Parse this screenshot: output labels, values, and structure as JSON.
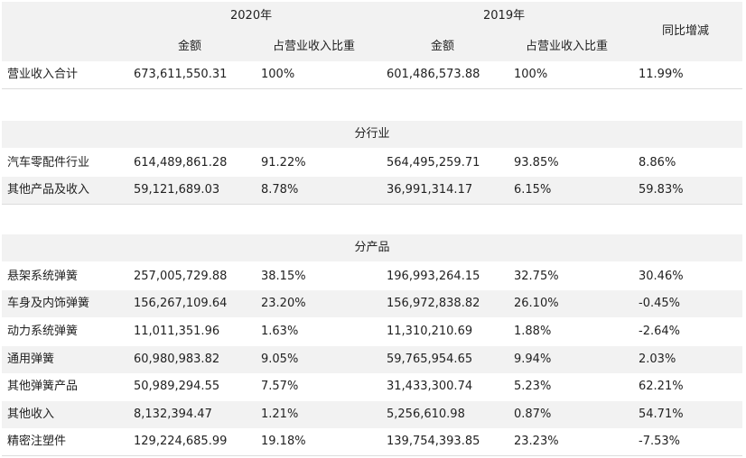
{
  "header": {
    "year_2020": "2020年",
    "year_2019": "2019年",
    "amount_2020": "金额",
    "ratio_2020": "占营业收入比重",
    "amount_2019": "金额",
    "ratio_2019": "占营业收入比重",
    "yoy": "同比增减"
  },
  "total": {
    "label": "营业收入合计",
    "amount_2020": "673,611,550.31",
    "ratio_2020": "100%",
    "amount_2019": "601,486,573.88",
    "ratio_2019": "100%",
    "yoy": "11.99%"
  },
  "by_industry": {
    "title": "分行业",
    "rows": [
      {
        "label": "汽车零配件行业",
        "amount_2020": "614,489,861.28",
        "ratio_2020": "91.22%",
        "amount_2019": "564,495,259.71",
        "ratio_2019": "93.85%",
        "yoy": "8.86%"
      },
      {
        "label": "其他产品及收入",
        "amount_2020": "59,121,689.03",
        "ratio_2020": "8.78%",
        "amount_2019": "36,991,314.17",
        "ratio_2019": "6.15%",
        "yoy": "59.83%"
      }
    ]
  },
  "by_product": {
    "title": "分产品",
    "rows": [
      {
        "label": "悬架系统弹簧",
        "amount_2020": "257,005,729.88",
        "ratio_2020": "38.15%",
        "amount_2019": "196,993,264.15",
        "ratio_2019": "32.75%",
        "yoy": "30.46%"
      },
      {
        "label": "车身及内饰弹簧",
        "amount_2020": "156,267,109.64",
        "ratio_2020": "23.20%",
        "amount_2019": "156,972,838.82",
        "ratio_2019": "26.10%",
        "yoy": "-0.45%"
      },
      {
        "label": "动力系统弹簧",
        "amount_2020": "11,011,351.96",
        "ratio_2020": "1.63%",
        "amount_2019": "11,310,210.69",
        "ratio_2019": "1.88%",
        "yoy": "-2.64%"
      },
      {
        "label": "通用弹簧",
        "amount_2020": "60,980,983.82",
        "ratio_2020": "9.05%",
        "amount_2019": "59,765,954.65",
        "ratio_2019": "9.94%",
        "yoy": "2.03%"
      },
      {
        "label": "其他弹簧产品",
        "amount_2020": "50,989,294.55",
        "ratio_2020": "7.57%",
        "amount_2019": "31,433,300.74",
        "ratio_2019": "5.23%",
        "yoy": "62.21%"
      },
      {
        "label": "其他收入",
        "amount_2020": "8,132,394.47",
        "ratio_2020": "1.21%",
        "amount_2019": "5,256,610.98",
        "ratio_2019": "0.87%",
        "yoy": "54.71%"
      },
      {
        "label": "精密注塑件",
        "amount_2020": "129,224,685.99",
        "ratio_2020": "19.18%",
        "amount_2019": "139,754,393.85",
        "ratio_2019": "23.23%",
        "yoy": "-7.53%"
      }
    ]
  }
}
